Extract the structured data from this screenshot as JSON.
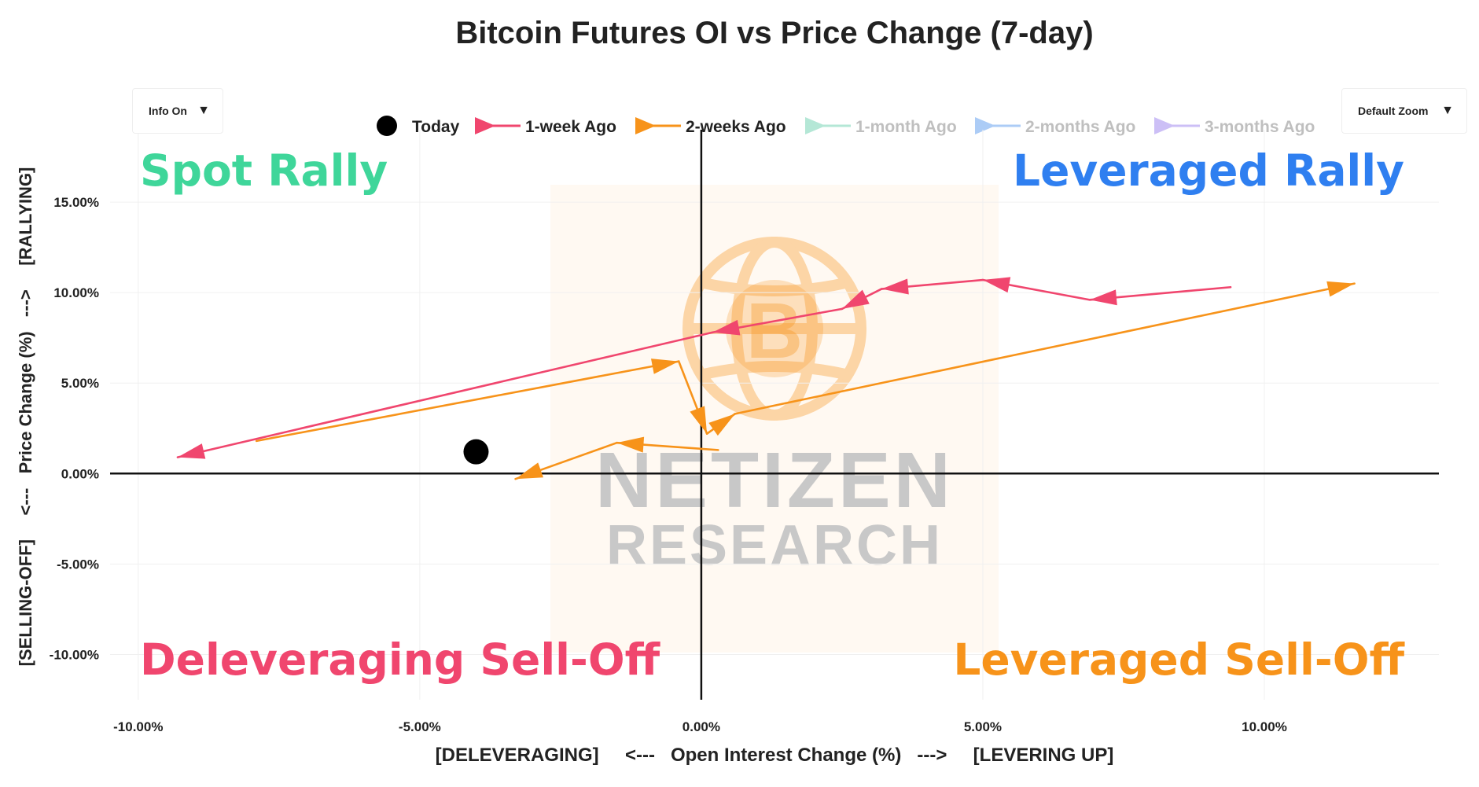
{
  "controls": {
    "info_label": "Info On",
    "zoom_label": "Default Zoom",
    "caret": "▼"
  },
  "colors": {
    "today": "#000000",
    "week1": "#f0466e",
    "week2": "#f7931a",
    "month1": "#a7e3cf",
    "months2": "#9ec4f5",
    "months3": "#c4b5f5",
    "spot_rally": "#3fd69a",
    "leveraged_rally": "#2f7ff0",
    "deleveraging": "#f0466e",
    "leveraged_selloff": "#f7931a"
  },
  "watermark": {
    "line1": "NETIZEN",
    "line2": "RESEARCH"
  },
  "chart_data": {
    "type": "line",
    "title": "Bitcoin Futures OI vs Price Change (7-day)",
    "xlabel": "[DELEVERAGING]     <---   Open Interest Change (%)   --->     [LEVERING UP]",
    "ylabel": "[SELLING-OFF]     <---   Price Change (%)   --->     [RALLYING]",
    "xlim": [
      -10.5,
      13.1
    ],
    "ylim": [
      -12.5,
      19.0
    ],
    "x_ticks": [
      -10,
      -5,
      0,
      5,
      10
    ],
    "x_tick_labels": [
      "-10.00%",
      "-5.00%",
      "0.00%",
      "5.00%",
      "10.00%"
    ],
    "y_ticks": [
      -10,
      -5,
      0,
      5,
      10,
      15
    ],
    "y_tick_labels": [
      "-10.00%",
      "-5.00%",
      "0.00%",
      "5.00%",
      "10.00%",
      "15.00%"
    ],
    "grid": true,
    "legend": {
      "position": "top",
      "entries": [
        {
          "name": "Today",
          "color": "#000000",
          "kind": "dot",
          "active": true
        },
        {
          "name": "1-week Ago",
          "color": "#f0466e",
          "kind": "arrow",
          "active": true
        },
        {
          "name": "2-weeks Ago",
          "color": "#f7931a",
          "kind": "arrow",
          "active": true
        },
        {
          "name": "1-month Ago",
          "color": "#a7e3cf",
          "kind": "arrow",
          "active": false
        },
        {
          "name": "2-months Ago",
          "color": "#9ec4f5",
          "kind": "arrow",
          "active": false
        },
        {
          "name": "3-months Ago",
          "color": "#c4b5f5",
          "kind": "arrow",
          "active": false
        }
      ]
    },
    "quadrants": {
      "top_left": "Spot Rally",
      "top_right": "Leveraged Rally",
      "bottom_left": "Deleveraging Sell-Off",
      "bottom_right": "Leveraged Sell-Off"
    },
    "series": [
      {
        "name": "2-weeks Ago",
        "color": "#f7931a",
        "points": [
          {
            "x": -7.9,
            "y": 1.8
          },
          {
            "x": -0.4,
            "y": 6.2
          },
          {
            "x": 0.1,
            "y": 2.2
          },
          {
            "x": 0.6,
            "y": 3.3
          },
          {
            "x": 11.6,
            "y": 10.5
          }
        ]
      },
      {
        "name": "1-week Ago",
        "color": "#f0466e",
        "points": [
          {
            "x": 9.4,
            "y": 10.3
          },
          {
            "x": 6.9,
            "y": 9.6
          },
          {
            "x": 5.0,
            "y": 10.7
          },
          {
            "x": 3.2,
            "y": 10.2
          },
          {
            "x": 2.5,
            "y": 9.1
          },
          {
            "x": 0.2,
            "y": 7.8
          },
          {
            "x": -9.3,
            "y": 0.9
          }
        ]
      },
      {
        "name": "Today",
        "color": "#f7931a",
        "points": [
          {
            "x": 0.3,
            "y": 1.3
          },
          {
            "x": -1.5,
            "y": 1.7
          },
          {
            "x": -3.3,
            "y": -0.3
          }
        ]
      }
    ],
    "today_point": {
      "x": -4.0,
      "y": 1.2
    }
  }
}
